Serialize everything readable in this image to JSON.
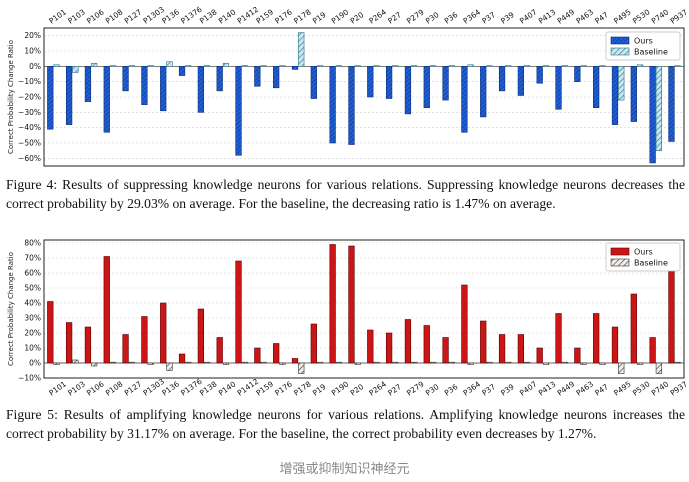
{
  "chart_data": [
    {
      "type": "bar",
      "title": "",
      "xlabel": "",
      "ylabel": "Correct Probability Change Ratio",
      "ylim": [
        -0.65,
        0.25
      ],
      "yticks": [
        0.2,
        0.1,
        0.0,
        -0.1,
        -0.2,
        -0.3,
        -0.4,
        -0.5,
        -0.6
      ],
      "ytick_labels": [
        "20%",
        "10%",
        "0%",
        "−10%",
        "−20%",
        "−30%",
        "−40%",
        "−50%",
        "−60%"
      ],
      "grid": true,
      "legend_position": "top-right",
      "categories": [
        "P101",
        "P103",
        "P106",
        "P108",
        "P127",
        "P1303",
        "P136",
        "P1376",
        "P138",
        "P140",
        "P1412",
        "P159",
        "P176",
        "P178",
        "P19",
        "P190",
        "P20",
        "P264",
        "P27",
        "P279",
        "P30",
        "P36",
        "P364",
        "P37",
        "P39",
        "P407",
        "P413",
        "P449",
        "P463",
        "P47",
        "P495",
        "P530",
        "P740",
        "P937"
      ],
      "series": [
        {
          "name": "Ours",
          "color": "#1f5fd6",
          "pattern": "dense-diagonal",
          "values": [
            -0.41,
            -0.38,
            -0.23,
            -0.43,
            -0.16,
            -0.25,
            -0.29,
            -0.06,
            -0.3,
            -0.16,
            -0.58,
            -0.13,
            -0.14,
            -0.02,
            -0.21,
            -0.5,
            -0.51,
            -0.2,
            -0.21,
            -0.31,
            -0.27,
            -0.22,
            -0.43,
            -0.33,
            -0.16,
            -0.19,
            -0.11,
            -0.28,
            -0.1,
            -0.27,
            -0.38,
            -0.36,
            -0.63,
            -0.49
          ]
        },
        {
          "name": "Baseline",
          "color": "#9fd3e6",
          "pattern": "sparse-diagonal",
          "values": [
            0.01,
            -0.04,
            0.02,
            0.0,
            0.0,
            0.0,
            0.03,
            0.0,
            0.0,
            0.02,
            0.0,
            0.0,
            0.0,
            0.22,
            0.0,
            0.0,
            0.0,
            0.0,
            0.0,
            0.0,
            0.0,
            0.0,
            0.01,
            0.0,
            0.0,
            0.0,
            0.0,
            0.0,
            0.0,
            0.0,
            -0.22,
            0.01,
            -0.55,
            0.0
          ]
        }
      ]
    },
    {
      "type": "bar",
      "title": "",
      "xlabel": "",
      "ylabel": "Correct Probability Change Ratio",
      "ylim": [
        -0.1,
        0.82
      ],
      "yticks": [
        0.8,
        0.7,
        0.6,
        0.5,
        0.4,
        0.3,
        0.2,
        0.1,
        0.0,
        -0.1
      ],
      "ytick_labels": [
        "80%",
        "70%",
        "60%",
        "50%",
        "40%",
        "30%",
        "20%",
        "10%",
        "0%",
        "−10%"
      ],
      "grid": true,
      "legend_position": "top-right",
      "categories": [
        "P101",
        "P103",
        "P106",
        "P108",
        "P127",
        "P1303",
        "P136",
        "P1376",
        "P138",
        "P140",
        "P1412",
        "P159",
        "P176",
        "P178",
        "P19",
        "P190",
        "P20",
        "P264",
        "P27",
        "P279",
        "P30",
        "P36",
        "P364",
        "P37",
        "P39",
        "P407",
        "P413",
        "P449",
        "P463",
        "P47",
        "P495",
        "P530",
        "P740",
        "P937"
      ],
      "series": [
        {
          "name": "Ours",
          "color": "#cc1515",
          "pattern": "solid",
          "values": [
            0.41,
            0.27,
            0.24,
            0.71,
            0.19,
            0.31,
            0.4,
            0.06,
            0.36,
            0.17,
            0.68,
            0.1,
            0.13,
            0.03,
            0.26,
            0.79,
            0.78,
            0.22,
            0.2,
            0.29,
            0.25,
            0.17,
            0.52,
            0.28,
            0.19,
            0.19,
            0.1,
            0.33,
            0.1,
            0.33,
            0.24,
            0.46,
            0.17,
            0.72
          ]
        },
        {
          "name": "Baseline",
          "color": "#e8e0d8",
          "pattern": "sparse-diagonal",
          "values": [
            -0.01,
            0.02,
            -0.02,
            0.0,
            0.0,
            -0.01,
            -0.05,
            0.0,
            0.0,
            -0.01,
            0.0,
            0.0,
            -0.01,
            -0.07,
            0.0,
            0.0,
            -0.01,
            0.0,
            0.0,
            0.0,
            0.0,
            0.0,
            -0.01,
            0.0,
            0.0,
            0.0,
            -0.01,
            0.0,
            -0.01,
            -0.01,
            -0.07,
            -0.01,
            -0.07,
            0.0
          ]
        }
      ]
    }
  ],
  "captions": [
    "Figure 4: Results of suppressing knowledge neurons for various relations. Suppressing knowledge neurons decreases the correct probability by 29.03% on average. For the baseline, the decreasing ratio is 1.47% on average.",
    "Figure 5: Results of amplifying knowledge neurons for various relations. Amplifying knowledge neurons increases the correct probability by 31.17% on average. For the baseline, the correct probability even decreases by 1.27%."
  ],
  "watermark": "增强或抑制知识神经元"
}
